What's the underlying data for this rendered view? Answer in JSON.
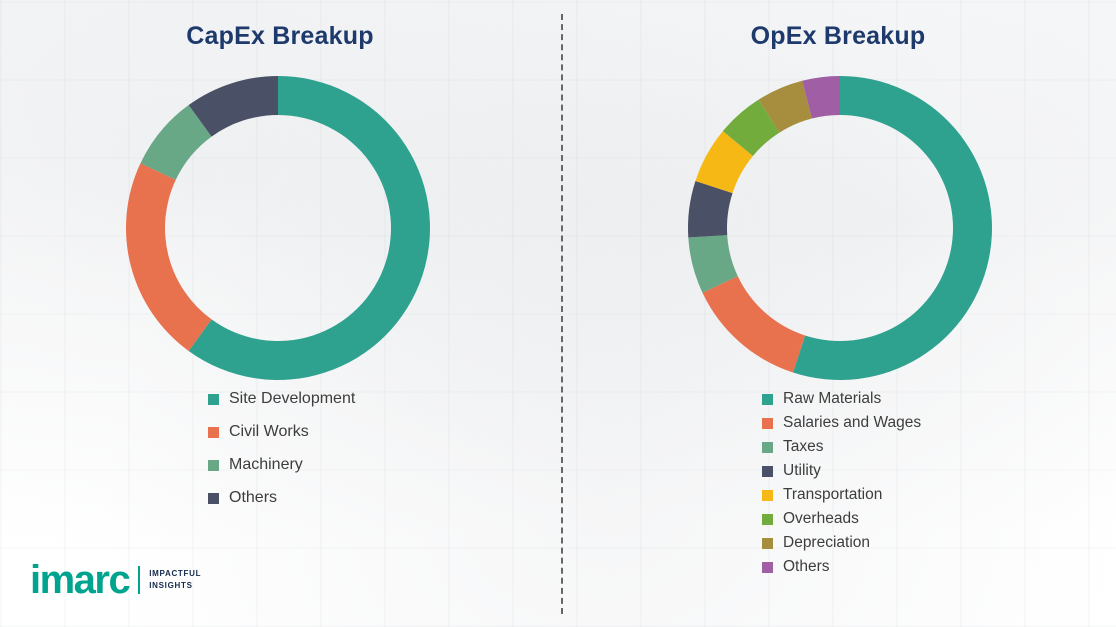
{
  "chart_data": [
    {
      "type": "pie",
      "donut": true,
      "title": "CapEx Breakup",
      "categories": [
        "Site Development",
        "Civil Works",
        "Machinery",
        "Others"
      ],
      "values": [
        60,
        22,
        8,
        10
      ],
      "colors": [
        "#2FA28F",
        "#E8714E",
        "#68A887",
        "#4A5065"
      ],
      "legend_position": "bottom-left",
      "start_angle": "top",
      "direction": "clockwise"
    },
    {
      "type": "pie",
      "donut": true,
      "title": "OpEx Breakup",
      "categories": [
        "Raw Materials",
        "Salaries and Wages",
        "Taxes",
        "Utility",
        "Transportation",
        "Overheads",
        "Depreciation",
        "Others"
      ],
      "values": [
        55,
        13,
        6,
        6,
        6,
        5,
        5,
        4
      ],
      "colors": [
        "#2FA28F",
        "#E8714E",
        "#68A887",
        "#4A5065",
        "#F6B815",
        "#72AC3C",
        "#A68E3E",
        "#A05EA5"
      ],
      "legend_position": "bottom-left",
      "start_angle": "top",
      "direction": "clockwise"
    }
  ],
  "divider": {
    "style": "dashed"
  },
  "brand": {
    "logo": "imarc",
    "tagline": [
      "IMPACTFUL",
      "INSIGHTS"
    ]
  }
}
